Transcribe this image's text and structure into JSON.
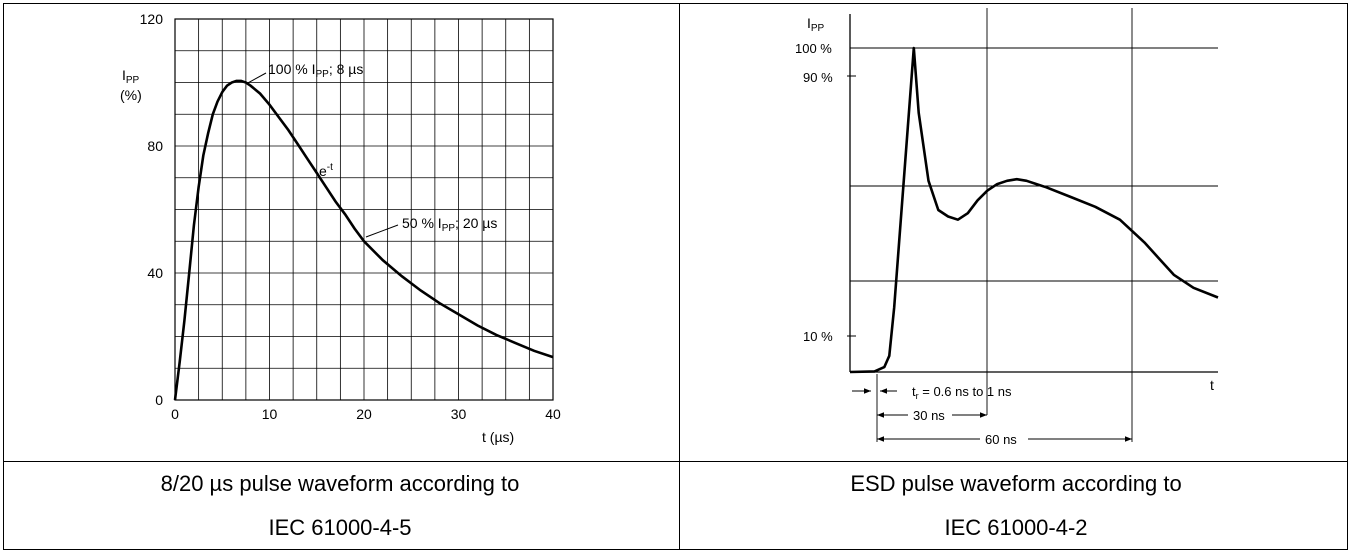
{
  "chart_data": [
    {
      "type": "line",
      "caption_line1": "8/20 µs pulse waveform according to",
      "caption_line2": "IEC 61000-4-5",
      "ylabel_main": "I",
      "ylabel_sub": "PP",
      "ylabel_unit": "(%)",
      "xlabel": "t (µs)",
      "xlim": [
        0,
        40
      ],
      "ylim": [
        0,
        120
      ],
      "x_ticks": [
        0,
        10,
        20,
        30,
        40
      ],
      "y_ticks": [
        0,
        40,
        80,
        120
      ],
      "grid": true,
      "annotations": [
        {
          "text": "100 % I",
          "sub": "PP",
          "suffix": "; 8 µs",
          "x": 7,
          "y": 100
        },
        {
          "text": "e",
          "sup": "-t",
          "x": 16,
          "y": 72
        },
        {
          "text": "50 % I",
          "sub": "PP",
          "suffix": "; 20 µs",
          "x": 20,
          "y": 50
        }
      ],
      "series": [
        {
          "x": [
            0,
            0.5,
            1,
            1.5,
            2,
            2.5,
            3,
            3.5,
            4,
            4.5,
            5,
            5.5,
            6,
            6.5,
            7,
            7.5,
            8,
            9,
            10,
            11,
            12,
            13,
            14,
            15,
            16,
            17,
            18,
            19,
            20,
            22,
            24,
            26,
            28,
            30,
            32,
            34,
            36,
            38,
            40
          ],
          "y": [
            0,
            12,
            25,
            40,
            55,
            67,
            77,
            84,
            90,
            94,
            97,
            99,
            100,
            100.5,
            100.5,
            100,
            99,
            96.5,
            93,
            89,
            85,
            80.5,
            76,
            71.5,
            67,
            62.5,
            58.5,
            54,
            50,
            44,
            39,
            34.5,
            30.5,
            27,
            23.5,
            20.5,
            18,
            15.5,
            13.5
          ]
        }
      ]
    },
    {
      "type": "line",
      "caption_line1": "ESD pulse waveform according to",
      "caption_line2": "IEC 61000-4-2",
      "ylabel_main": "I",
      "ylabel_sub": "PP",
      "xlabel": "t",
      "y_ticks": [
        {
          "label": "100 %",
          "value": 100
        },
        {
          "label": "90 %",
          "value": 90
        },
        {
          "label": "10 %",
          "value": 10
        }
      ],
      "annotations": [
        {
          "text": "t",
          "sub": "r",
          "suffix": " = 0.6 ns to 1 ns"
        },
        {
          "text": "30 ns"
        },
        {
          "text": "60 ns"
        }
      ],
      "series": [
        {
          "x": [
            0,
            5,
            7,
            8,
            9,
            10,
            11,
            12,
            13,
            14,
            16,
            18,
            20,
            22,
            24,
            26,
            28,
            30,
            32,
            34,
            36,
            38,
            40,
            45,
            50,
            55,
            60,
            63,
            66,
            70,
            75
          ],
          "y": [
            0,
            0.2,
            1.5,
            5,
            20,
            40,
            60,
            80,
            100,
            80,
            59,
            50,
            48,
            47,
            49,
            53,
            56,
            58,
            59,
            59.5,
            59,
            58,
            57,
            54,
            51,
            47,
            40,
            35,
            30,
            26,
            23
          ]
        }
      ]
    }
  ]
}
